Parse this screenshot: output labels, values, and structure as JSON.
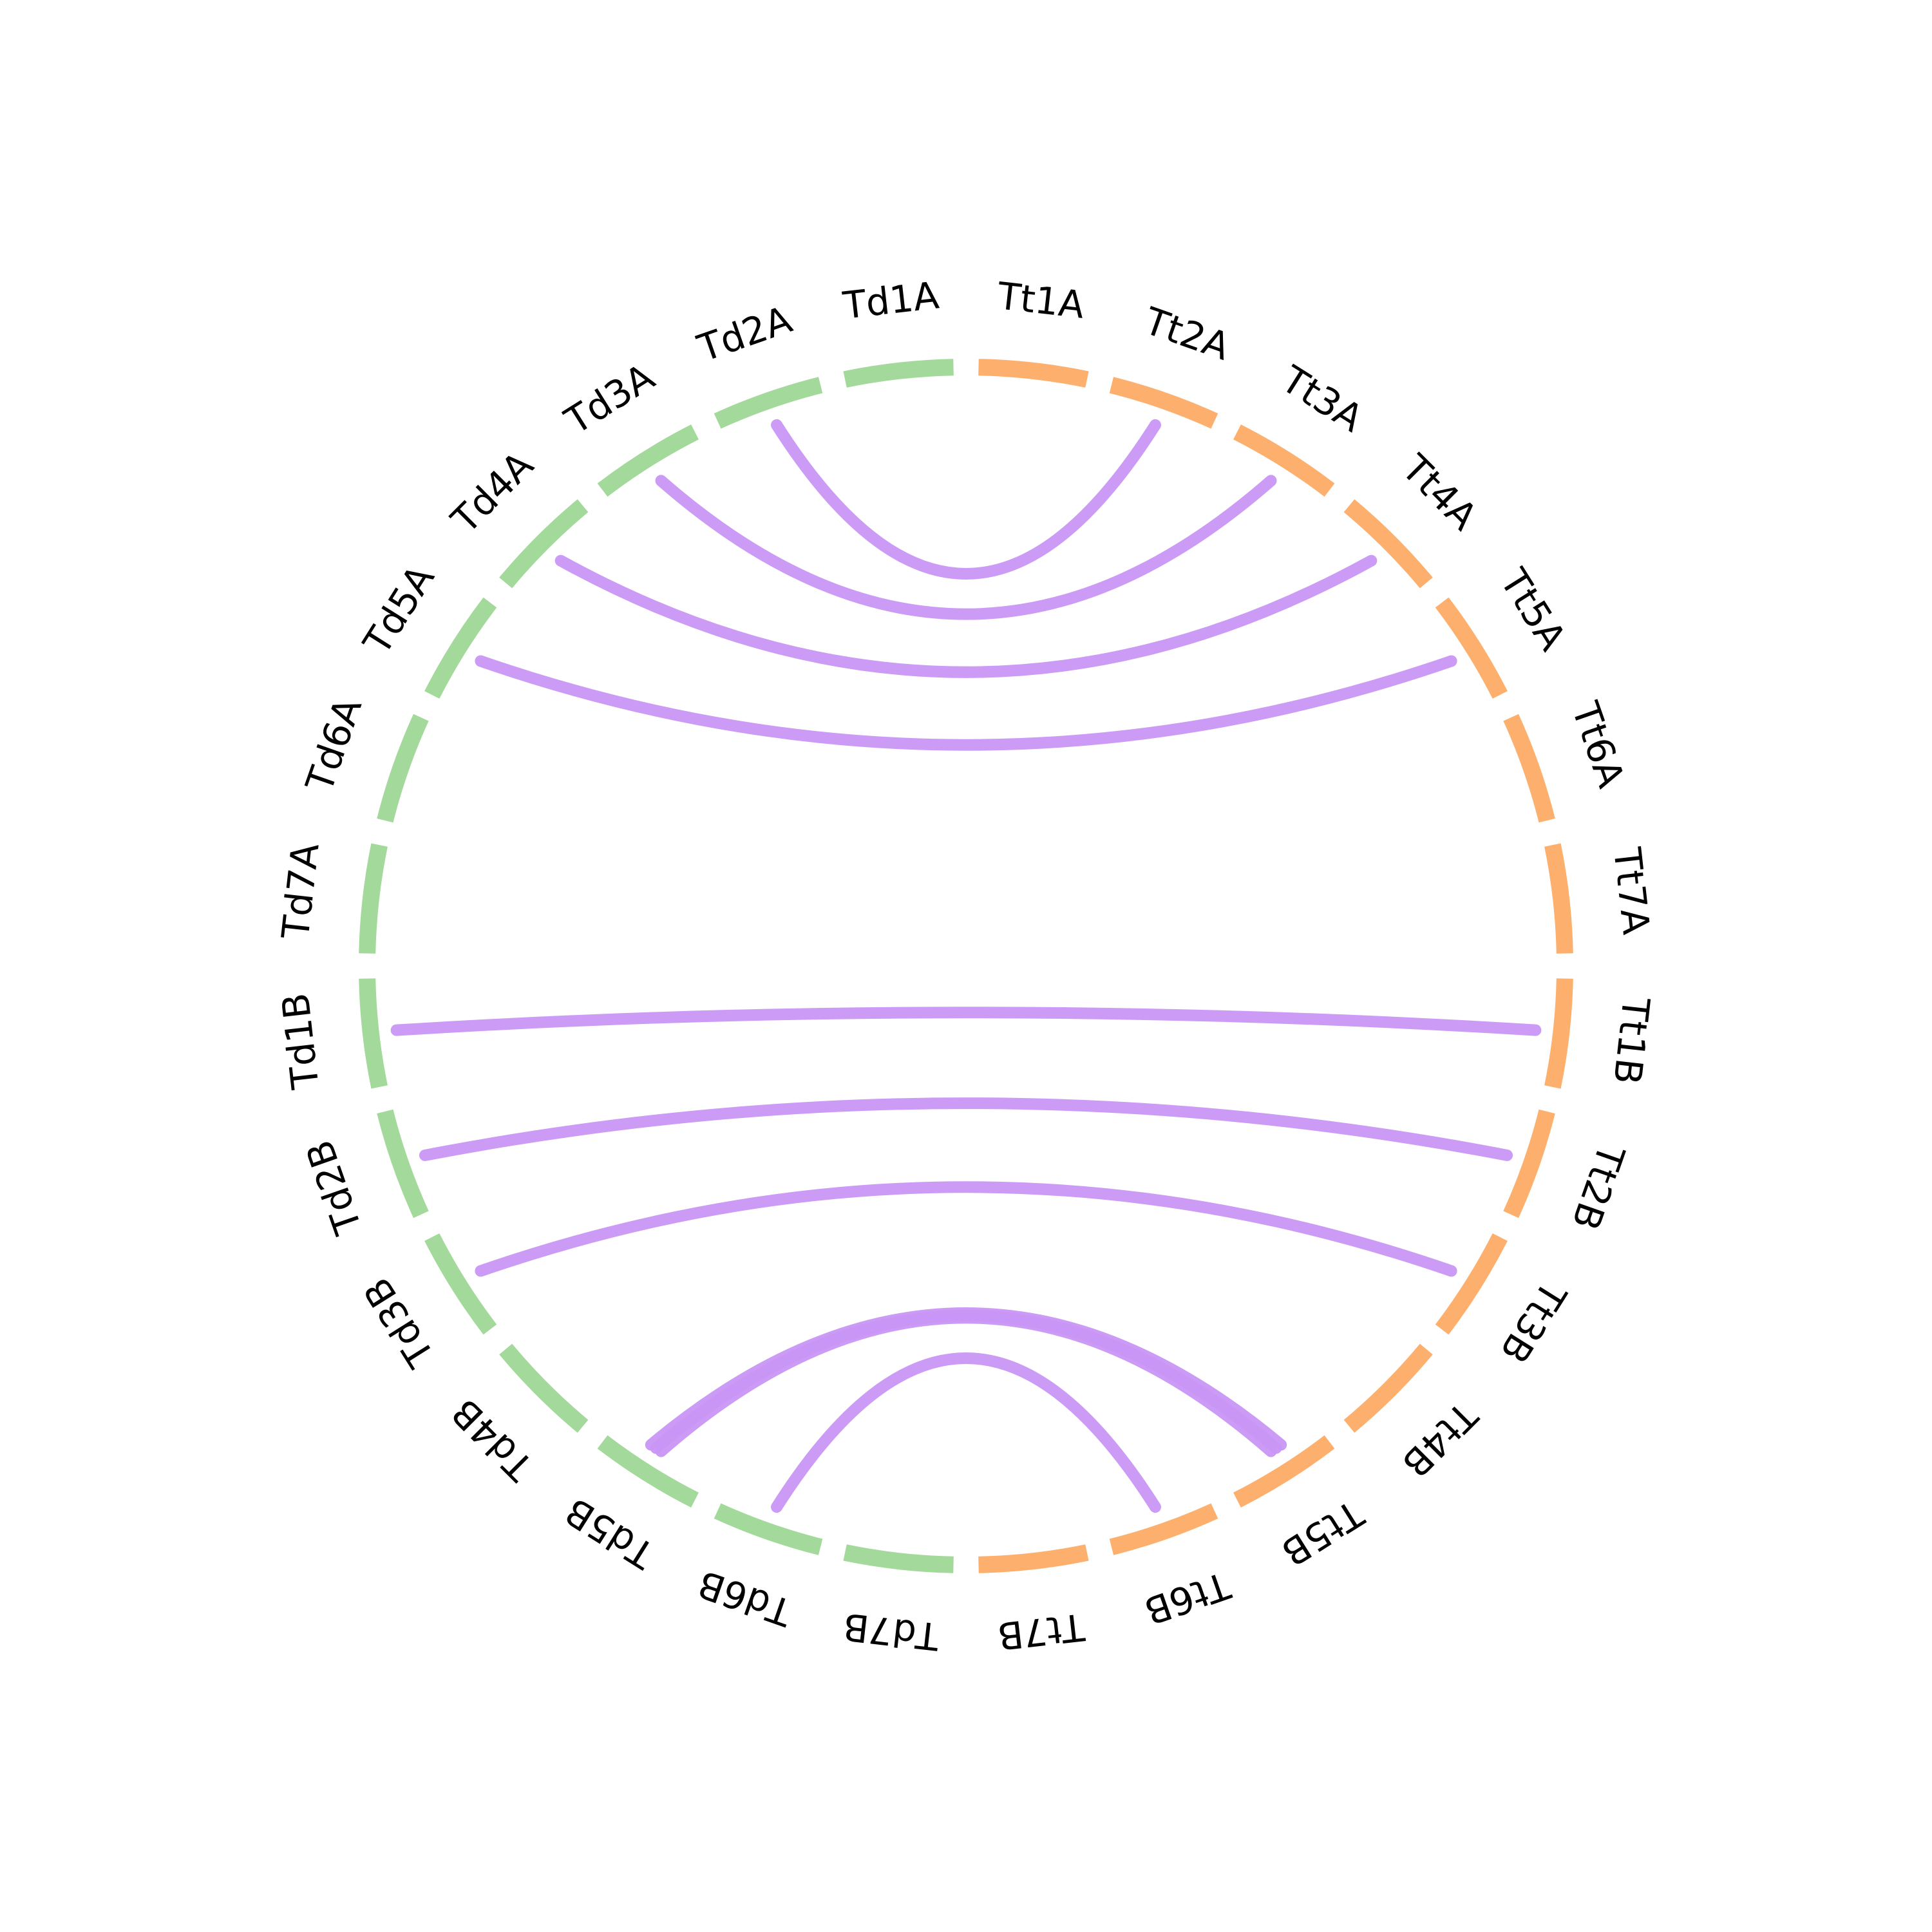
{
  "colors": {
    "Td": "#a3d99a",
    "Tt": "#fdb06e",
    "link": "#c896f5"
  },
  "chromosomes": [
    {
      "name": "Td1A",
      "group": "Td"
    },
    {
      "name": "Td2A",
      "group": "Td"
    },
    {
      "name": "Td3A",
      "group": "Td"
    },
    {
      "name": "Td4A",
      "group": "Td"
    },
    {
      "name": "Td5A",
      "group": "Td"
    },
    {
      "name": "Td6A",
      "group": "Td"
    },
    {
      "name": "Td7A",
      "group": "Td"
    },
    {
      "name": "Td1B",
      "group": "Td"
    },
    {
      "name": "Td2B",
      "group": "Td"
    },
    {
      "name": "Td3B",
      "group": "Td"
    },
    {
      "name": "Td4B",
      "group": "Td"
    },
    {
      "name": "Td5B",
      "group": "Td"
    },
    {
      "name": "Td6B",
      "group": "Td"
    },
    {
      "name": "Td7B",
      "group": "Td"
    },
    {
      "name": "Tt7B",
      "group": "Tt"
    },
    {
      "name": "Tt6B",
      "group": "Tt"
    },
    {
      "name": "Tt5B",
      "group": "Tt"
    },
    {
      "name": "Tt4B",
      "group": "Tt"
    },
    {
      "name": "Tt3B",
      "group": "Tt"
    },
    {
      "name": "Tt2B",
      "group": "Tt"
    },
    {
      "name": "Tt1B",
      "group": "Tt"
    },
    {
      "name": "Tt7A",
      "group": "Tt"
    },
    {
      "name": "Tt6A",
      "group": "Tt"
    },
    {
      "name": "Tt5A",
      "group": "Tt"
    },
    {
      "name": "Tt4A",
      "group": "Tt"
    },
    {
      "name": "Tt3A",
      "group": "Tt"
    },
    {
      "name": "Tt2A",
      "group": "Tt"
    },
    {
      "name": "Tt1A",
      "group": "Tt"
    }
  ],
  "links": [
    {
      "from": "Td2A",
      "to": "Tt2A"
    },
    {
      "from": "Td3A",
      "to": "Tt3A"
    },
    {
      "from": "Td4A",
      "to": "Tt4A"
    },
    {
      "from": "Td5A",
      "to": "Tt5A"
    },
    {
      "from": "Td1B",
      "to": "Tt1B"
    },
    {
      "from": "Td2B",
      "to": "Tt2B"
    },
    {
      "from": "Td3B",
      "to": "Tt3B"
    },
    {
      "from": "Td5B",
      "to": "Tt5B"
    },
    {
      "from": "Td5B",
      "to": "Tt5B"
    },
    {
      "from": "Td5B",
      "to": "Tt5B"
    },
    {
      "from": "Td6B",
      "to": "Tt6B"
    }
  ]
}
